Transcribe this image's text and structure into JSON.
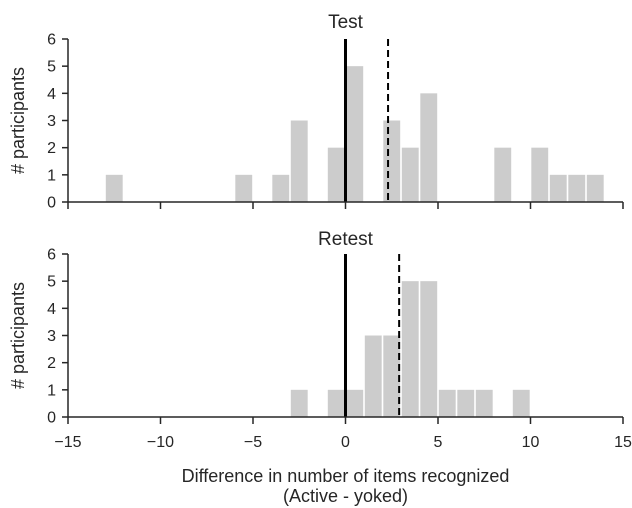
{
  "chart_data": [
    {
      "type": "bar",
      "title": "Test",
      "xlabel": "",
      "ylabel": "# participants",
      "xlim": [
        -15,
        15
      ],
      "ylim": [
        0,
        6
      ],
      "bin_width": 1,
      "bar_color": "#cccccc",
      "x_ticks": [
        "−15",
        "−10",
        "−5",
        "0",
        "5",
        "10",
        "15"
      ],
      "x_tick_labels_shown": false,
      "y_ticks": [
        "0",
        "1",
        "2",
        "3",
        "4",
        "5",
        "6"
      ],
      "bins": [
        {
          "left": -13,
          "count": 1
        },
        {
          "left": -6,
          "count": 1
        },
        {
          "left": -4,
          "count": 1
        },
        {
          "left": -3,
          "count": 3
        },
        {
          "left": -1,
          "count": 2
        },
        {
          "left": 0,
          "count": 5
        },
        {
          "left": 2,
          "count": 3
        },
        {
          "left": 3,
          "count": 2
        },
        {
          "left": 4,
          "count": 4
        },
        {
          "left": 8,
          "count": 2
        },
        {
          "left": 10,
          "count": 2
        },
        {
          "left": 11,
          "count": 1
        },
        {
          "left": 12,
          "count": 1
        },
        {
          "left": 13,
          "count": 1
        }
      ],
      "reference_lines": [
        {
          "x": 0,
          "style": "solid",
          "color": "#000000"
        },
        {
          "x": 2.3,
          "style": "dashed",
          "color": "#000000"
        }
      ]
    },
    {
      "type": "bar",
      "title": "Retest",
      "xlabel": "Difference in number of items recognized",
      "xlabel_line2": "(Active - yoked)",
      "ylabel": "# participants",
      "xlim": [
        -15,
        15
      ],
      "ylim": [
        0,
        6
      ],
      "bin_width": 1,
      "bar_color": "#cccccc",
      "x_ticks": [
        "−15",
        "−10",
        "−5",
        "0",
        "5",
        "10",
        "15"
      ],
      "x_tick_labels_shown": true,
      "y_ticks": [
        "0",
        "1",
        "2",
        "3",
        "4",
        "5",
        "6"
      ],
      "bins": [
        {
          "left": -3,
          "count": 1
        },
        {
          "left": -1,
          "count": 1
        },
        {
          "left": 0,
          "count": 1
        },
        {
          "left": 1,
          "count": 3
        },
        {
          "left": 2,
          "count": 3
        },
        {
          "left": 3,
          "count": 5
        },
        {
          "left": 4,
          "count": 5
        },
        {
          "left": 5,
          "count": 1
        },
        {
          "left": 6,
          "count": 1
        },
        {
          "left": 7,
          "count": 1
        },
        {
          "left": 9,
          "count": 1
        }
      ],
      "reference_lines": [
        {
          "x": 0,
          "style": "solid",
          "color": "#000000"
        },
        {
          "x": 2.9,
          "style": "dashed",
          "color": "#000000"
        }
      ]
    }
  ]
}
